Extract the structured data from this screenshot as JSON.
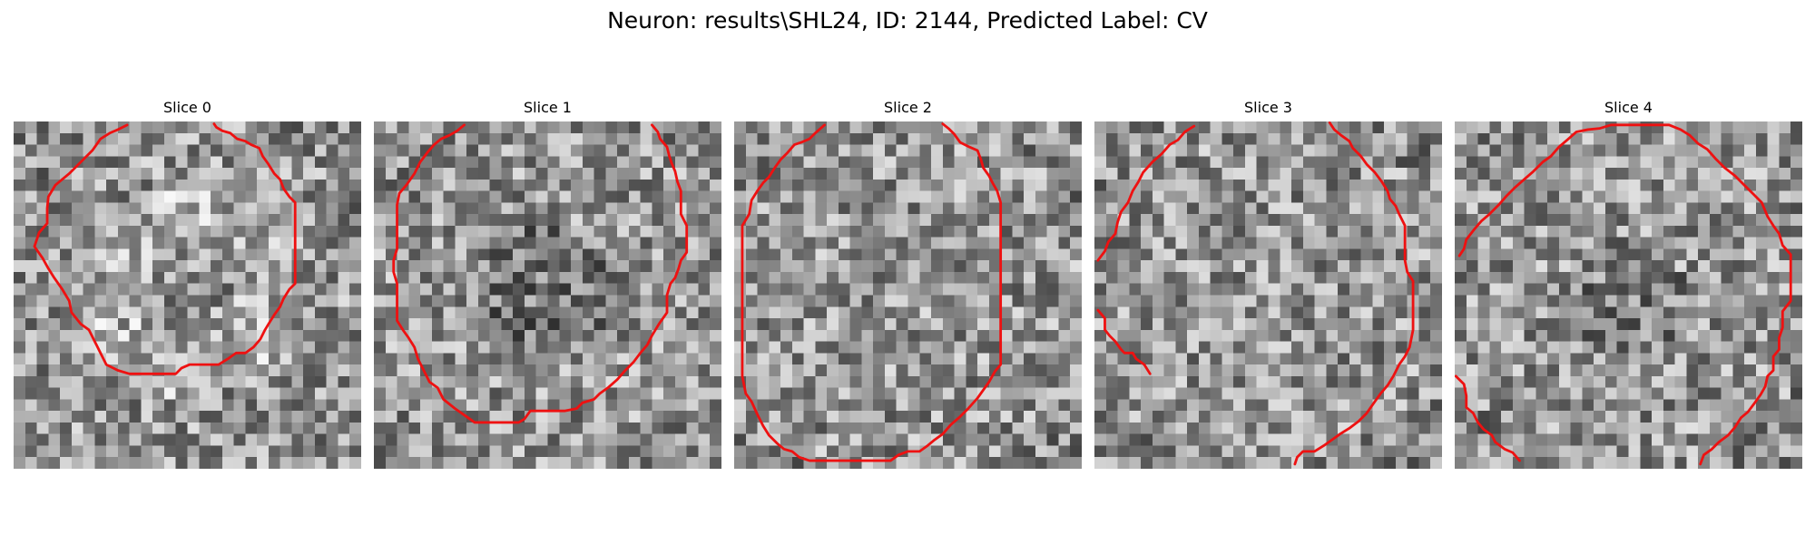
{
  "figure": {
    "title": "Neuron: results\\SHL24, ID: 2144, Predicted Label: CV",
    "colormap": "grayscale",
    "contour_color": "#ee1111",
    "grid_size": 30
  },
  "panels": [
    {
      "title": "Slice 0"
    },
    {
      "title": "Slice 1"
    },
    {
      "title": "Slice 2"
    },
    {
      "title": "Slice 3"
    },
    {
      "title": "Slice 4"
    }
  ]
}
